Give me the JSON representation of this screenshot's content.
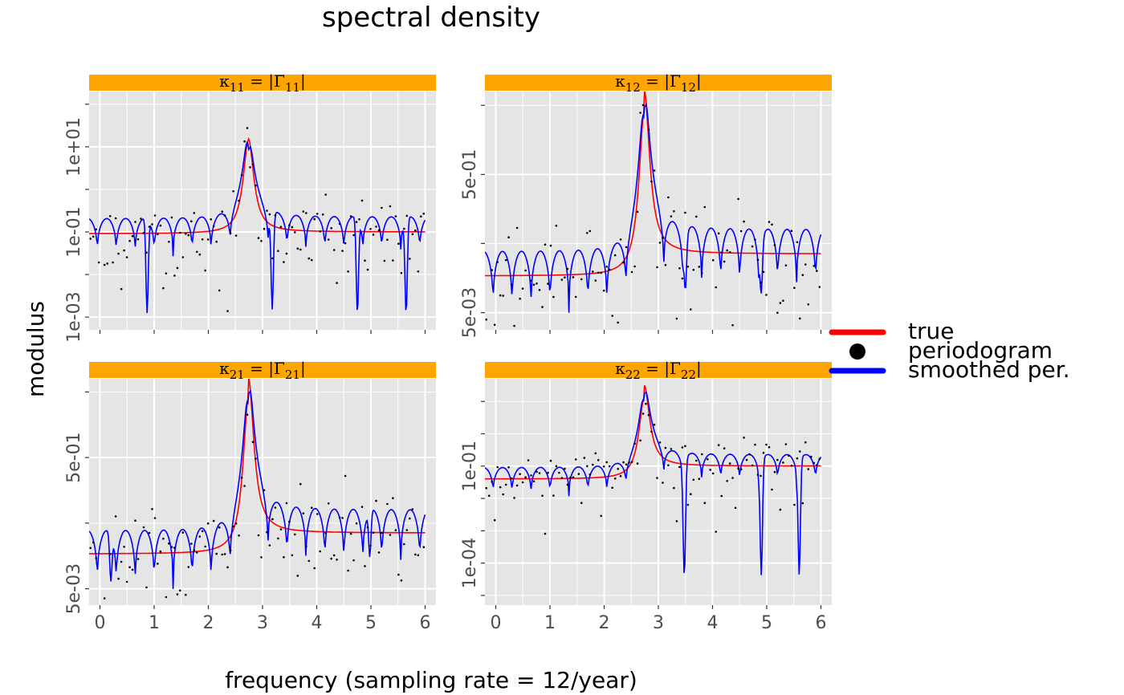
{
  "page": {
    "title": "spectral density",
    "xlabel": "frequency (sampling rate = 12/year)",
    "ylabel": "modulus"
  },
  "legend": {
    "items": [
      {
        "label": "true",
        "color": "#ff0000",
        "symbol": "line"
      },
      {
        "label": "periodogram",
        "color": "#000000",
        "symbol": "dot"
      },
      {
        "label": "smoothed per.",
        "color": "#0000ff",
        "symbol": "line"
      }
    ],
    "placement": "right"
  },
  "colors": {
    "panel_bg": "#e5e5e5",
    "strip_bg": "#ffa500",
    "grid": "#ffffff",
    "true": "#ff0000",
    "smoothed": "#0000ff",
    "periodogram": "#000000"
  },
  "chart_data": [
    {
      "type": "line",
      "strip": {
        "main": "κ",
        "sub": "11",
        "rhs": "|Γ",
        "rhs_sub": "11",
        "close": "|"
      },
      "xlim": [
        -0.2,
        6.2
      ],
      "ylog": true,
      "ylim_log10": [
        -3.3,
        2.3
      ],
      "y_ticks": [
        {
          "label": "1e-03",
          "log": -3
        },
        {
          "label": "1e-01",
          "log": -1
        },
        {
          "label": "1e+01",
          "log": 1
        }
      ],
      "y_minor_log": [
        -2,
        0,
        2
      ],
      "x_ticks": [
        0,
        1,
        2,
        3,
        4,
        5,
        6
      ],
      "show_x_labels": false,
      "true_model": {
        "peak_freq": 2.74,
        "peak_log": 1.15,
        "base_log": -1.04,
        "tail_log": -1.0,
        "width": 0.12
      },
      "smoothed": {
        "period": 0.35,
        "spike_freqs": [
          0.87,
          3.18,
          4.75,
          5.65
        ],
        "spike_depth": 2.2
      },
      "periodogram_seed": 11
    },
    {
      "type": "line",
      "strip": {
        "main": "κ",
        "sub": "12",
        "rhs": "|Γ",
        "rhs_sub": "12",
        "close": "|"
      },
      "xlim": [
        -0.2,
        6.2
      ],
      "ylog": true,
      "ylim_log10": [
        -2.55,
        0.9
      ],
      "y_ticks": [
        {
          "label": "5e-03",
          "log": -2.30103
        },
        {
          "label": "5e-01",
          "log": -0.30103
        }
      ],
      "y_minor_log": [
        -1.3,
        0.7
      ],
      "x_ticks": [
        0,
        1,
        2,
        3,
        4,
        5,
        6
      ],
      "show_x_labels": false,
      "true_model": {
        "peak_freq": 2.74,
        "peak_log": 0.6,
        "base_log": -1.77,
        "tail_log": -1.45,
        "width": 0.12
      },
      "smoothed": {
        "period": 0.35,
        "spike_freqs": [
          3.5,
          4.9
        ],
        "spike_depth": 0.7
      },
      "periodogram_seed": 12
    },
    {
      "type": "line",
      "strip": {
        "main": "κ",
        "sub": "21",
        "rhs": "|Γ",
        "rhs_sub": "21",
        "close": "|"
      },
      "xlim": [
        -0.2,
        6.2
      ],
      "ylog": true,
      "ylim_log10": [
        -2.55,
        0.9
      ],
      "y_ticks": [
        {
          "label": "5e-03",
          "log": -2.30103
        },
        {
          "label": "5e-01",
          "log": -0.30103
        }
      ],
      "y_minor_log": [
        -1.3,
        0.7
      ],
      "x_ticks": [
        0,
        1,
        2,
        3,
        4,
        5,
        6
      ],
      "show_x_labels": true,
      "true_model": {
        "peak_freq": 2.74,
        "peak_log": 0.6,
        "base_log": -1.77,
        "tail_log": -1.45,
        "width": 0.12
      },
      "smoothed": {
        "period": 0.35,
        "spike_freqs": [
          0.2,
          4.98
        ],
        "spike_depth": 0.7
      },
      "periodogram_seed": 21
    },
    {
      "type": "line",
      "strip": {
        "main": "κ",
        "sub": "22",
        "rhs": "|Γ",
        "rhs_sub": "22",
        "close": "|"
      },
      "xlim": [
        -0.2,
        6.2
      ],
      "ylog": true,
      "ylim_log10": [
        -5.3,
        1.7
      ],
      "y_ticks": [
        {
          "label": "1e-04",
          "log": -4
        },
        {
          "label": "1e-01",
          "log": -1
        }
      ],
      "y_minor_log": [
        -5,
        -3,
        -2,
        0,
        1
      ],
      "x_ticks": [
        0,
        1,
        2,
        3,
        4,
        5,
        6
      ],
      "show_x_labels": true,
      "true_model": {
        "peak_freq": 2.74,
        "peak_log": 1.1,
        "base_log": -1.4,
        "tail_log": -1.0,
        "width": 0.12
      },
      "smoothed": {
        "period": 0.35,
        "spike_freqs": [
          3.48,
          4.9,
          5.6
        ],
        "spike_depth": 3.5
      },
      "periodogram_seed": 22
    }
  ]
}
